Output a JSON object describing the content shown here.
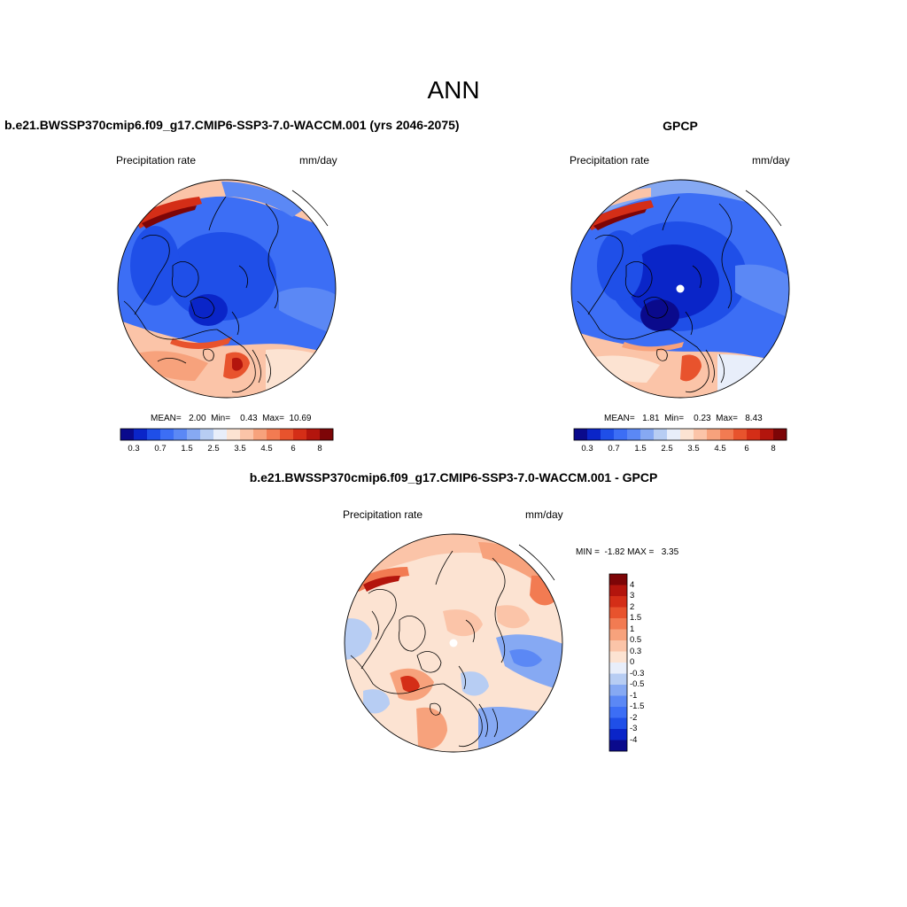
{
  "figure": {
    "title": "ANN"
  },
  "panels": [
    {
      "title": "b.e21.BWSSP370cmip6.f09_g17.CMIP6-SSP3-7.0-WACCM.001 (yrs 2046-2075)",
      "variable": "Precipitation rate",
      "units": "mm/day",
      "stats": "MEAN=   2.00  Min=    0.43  Max=  10.69"
    },
    {
      "title": "GPCP",
      "variable": "Precipitation rate",
      "units": "mm/day",
      "stats": "MEAN=   1.81  Min=    0.23  Max=   8.43"
    },
    {
      "title": "b.e21.BWSSP370cmip6.f09_g17.CMIP6-SSP3-7.0-WACCM.001 - GPCP",
      "variable": "Precipitation rate",
      "units": "mm/day",
      "stats": "MIN =  -1.82 MAX =   3.35"
    }
  ],
  "chart_data": [
    {
      "type": "heatmap",
      "panel": "model",
      "title": "b.e21.BWSSP370cmip6.f09_g17.CMIP6-SSP3-7.0-WACCM.001 (yrs 2046-2075)",
      "variable": "Precipitation rate",
      "units": "mm/day",
      "projection": "north polar stereographic",
      "mean": 2.0,
      "min": 0.43,
      "max": 10.69,
      "colorbar": {
        "orientation": "horizontal",
        "levels": [
          0.2,
          0.3,
          0.5,
          0.7,
          1,
          1.5,
          2,
          2.5,
          3,
          3.5,
          4,
          4.5,
          5,
          6,
          7,
          8
        ],
        "tick_labels": [
          "0.3",
          "0.7",
          "1.5",
          "2.5",
          "3.5",
          "4.5",
          "6",
          "8"
        ],
        "colors": [
          "#0a0a8c",
          "#0a25c8",
          "#1f4fe8",
          "#3c6ef5",
          "#5b88f5",
          "#86a9f3",
          "#b7cdf3",
          "#e8eefa",
          "#fce3d2",
          "#fbc4a8",
          "#f7a27c",
          "#f27b52",
          "#e8532d",
          "#d42e17",
          "#b3150d",
          "#7d0507"
        ]
      }
    },
    {
      "type": "heatmap",
      "panel": "obs",
      "title": "GPCP",
      "variable": "Precipitation rate",
      "units": "mm/day",
      "projection": "north polar stereographic",
      "mean": 1.81,
      "min": 0.23,
      "max": 8.43,
      "colorbar": {
        "orientation": "horizontal",
        "levels": [
          0.2,
          0.3,
          0.5,
          0.7,
          1,
          1.5,
          2,
          2.5,
          3,
          3.5,
          4,
          4.5,
          5,
          6,
          7,
          8
        ],
        "tick_labels": [
          "0.3",
          "0.7",
          "1.5",
          "2.5",
          "3.5",
          "4.5",
          "6",
          "8"
        ],
        "colors": [
          "#0a0a8c",
          "#0a25c8",
          "#1f4fe8",
          "#3c6ef5",
          "#5b88f5",
          "#86a9f3",
          "#b7cdf3",
          "#e8eefa",
          "#fce3d2",
          "#fbc4a8",
          "#f7a27c",
          "#f27b52",
          "#e8532d",
          "#d42e17",
          "#b3150d",
          "#7d0507"
        ]
      }
    },
    {
      "type": "heatmap",
      "panel": "difference",
      "title": "b.e21.BWSSP370cmip6.f09_g17.CMIP6-SSP3-7.0-WACCM.001 - GPCP",
      "variable": "Precipitation rate",
      "units": "mm/day",
      "projection": "north polar stereographic",
      "min": -1.82,
      "max": 3.35,
      "colorbar": {
        "orientation": "vertical",
        "tick_labels": [
          "4",
          "3",
          "2",
          "1.5",
          "1",
          "0.5",
          "0.3",
          "0",
          "-0.3",
          "-0.5",
          "-1",
          "-1.5",
          "-2",
          "-3",
          "-4"
        ],
        "colors": [
          "#7d0507",
          "#b3150d",
          "#d42e17",
          "#e8532d",
          "#f27b52",
          "#f7a27c",
          "#fbc4a8",
          "#fce3d2",
          "#e8eefa",
          "#b7cdf3",
          "#86a9f3",
          "#5b88f5",
          "#3c6ef5",
          "#1f4fe8",
          "#0a25c8",
          "#0a0a8c"
        ]
      }
    }
  ]
}
